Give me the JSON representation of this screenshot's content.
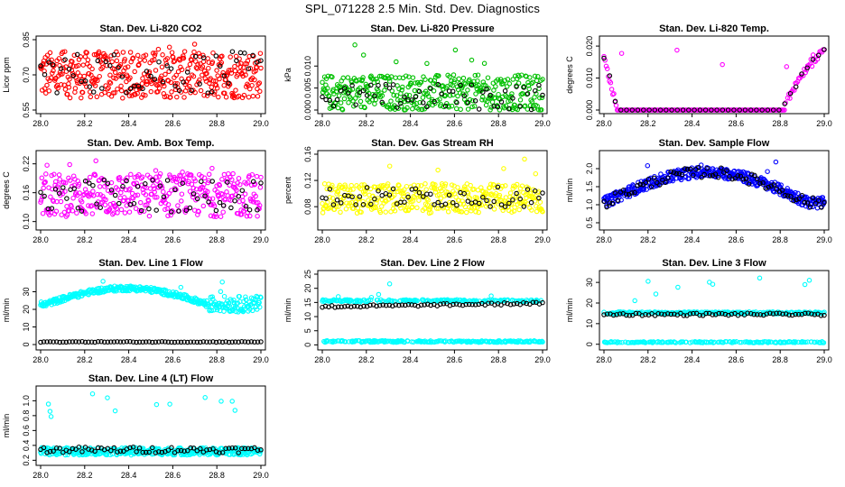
{
  "page": {
    "title": "SPL_071228  2.5 Min. Std. Dev. Diagnostics"
  },
  "chart_data": [
    {
      "type": "scatter",
      "title": "Stan. Dev. Li-820 CO2",
      "xlabel": "",
      "ylabel": "Licor ppm",
      "xlim": [
        28.0,
        29.0
      ],
      "ylim": [
        0.55,
        0.85
      ],
      "yticks": [
        "0.55",
        "0.70",
        "0.85"
      ],
      "xticks": [
        "28.0",
        "28.2",
        "28.4",
        "28.6",
        "28.8",
        "29.0"
      ],
      "series": [
        {
          "color": "#ff0000",
          "x": [
            28.0,
            29.0
          ],
          "band": [
            0.6,
            0.8
          ],
          "n": 420
        },
        {
          "color": "#000000",
          "x": [
            28.0,
            29.0
          ],
          "band": [
            0.62,
            0.8
          ],
          "n": 55
        }
      ]
    },
    {
      "type": "scatter",
      "title": "Stan. Dev. Li-820 Pressure",
      "xlabel": "",
      "ylabel": "kPa",
      "xlim": [
        28.0,
        29.0
      ],
      "ylim": [
        0.0,
        0.016
      ],
      "yticks": [
        "0.000",
        "0.005",
        "0.010"
      ],
      "xticks": [
        "28.0",
        "28.2",
        "28.4",
        "28.6",
        "28.8",
        "29.0"
      ],
      "series": [
        {
          "color": "#00c000",
          "x": [
            28.0,
            29.0
          ],
          "band": [
            0.0,
            0.008
          ],
          "n": 380
        },
        {
          "color": "#000000",
          "x": [
            28.0,
            29.0
          ],
          "band": [
            0.0,
            0.006
          ],
          "n": 60
        }
      ]
    },
    {
      "type": "scatter",
      "title": "Stan. Dev. Li-820 Temp.",
      "xlabel": "",
      "ylabel": "degrees C",
      "xlim": [
        28.0,
        29.0
      ],
      "ylim": [
        0.0,
        0.022
      ],
      "yticks": [
        "0.000",
        "0.010",
        "0.020"
      ],
      "xticks": [
        "28.0",
        "28.2",
        "28.4",
        "28.6",
        "28.8",
        "29.0"
      ],
      "series": [
        {
          "color": "#ff00ff",
          "x": [
            28.0,
            29.0
          ],
          "band": [
            0.0,
            0.0
          ],
          "n": 200
        },
        {
          "color": "#000000",
          "x": [
            28.0,
            29.0
          ],
          "band": [
            0.0,
            0.0
          ],
          "n": 40
        }
      ]
    },
    {
      "type": "scatter",
      "title": "Stan. Dev. Amb. Box Temp.",
      "xlabel": "",
      "ylabel": "degrees C",
      "xlim": [
        28.0,
        29.0
      ],
      "ylim": [
        0.09,
        0.24
      ],
      "yticks": [
        "0.10",
        "0.16",
        "0.22"
      ],
      "xticks": [
        "28.0",
        "28.2",
        "28.4",
        "28.6",
        "28.8",
        "29.0"
      ],
      "series": [
        {
          "color": "#ff00ff",
          "x": [
            28.0,
            29.0
          ],
          "band": [
            0.11,
            0.2
          ],
          "n": 380
        },
        {
          "color": "#000000",
          "x": [
            28.0,
            29.0
          ],
          "band": [
            0.12,
            0.19
          ],
          "n": 60
        }
      ]
    },
    {
      "type": "scatter",
      "title": "Stan. Dev. Gas Stream RH",
      "xlabel": "",
      "ylabel": "percent",
      "xlim": [
        28.0,
        29.0
      ],
      "ylim": [
        0.05,
        0.16
      ],
      "yticks": [
        "0.08",
        "0.12",
        "0.16"
      ],
      "xticks": [
        "28.0",
        "28.2",
        "28.4",
        "28.6",
        "28.8",
        "29.0"
      ],
      "series": [
        {
          "color": "#ffff00",
          "x": [
            28.0,
            29.0
          ],
          "band": [
            0.07,
            0.115
          ],
          "n": 380
        },
        {
          "color": "#000000",
          "x": [
            28.0,
            29.0
          ],
          "band": [
            0.08,
            0.11
          ],
          "n": 60
        }
      ]
    },
    {
      "type": "scatter",
      "title": "Stan. Dev. Sample Flow",
      "xlabel": "",
      "ylabel": "ml/min",
      "xlim": [
        28.0,
        29.0
      ],
      "ylim": [
        0.4,
        2.4
      ],
      "yticks": [
        "0.5",
        "1.0",
        "1.5",
        "2.0"
      ],
      "xticks": [
        "28.0",
        "28.2",
        "28.4",
        "28.6",
        "28.8",
        "29.0"
      ],
      "series": [
        {
          "color": "#0000ff",
          "x": [
            28.0,
            29.0
          ],
          "band": [
            1.0,
            1.9
          ],
          "n": 420
        },
        {
          "color": "#000000",
          "x": [
            28.0,
            29.0
          ],
          "band": [
            1.0,
            1.85
          ],
          "n": 80
        }
      ]
    },
    {
      "type": "scatter",
      "title": "Stan. Dev. Line 1 Flow",
      "xlabel": "",
      "ylabel": "ml/min",
      "xlim": [
        28.0,
        29.0
      ],
      "ylim": [
        -1,
        40
      ],
      "yticks": [
        "0",
        "10",
        "20",
        "30"
      ],
      "xticks": [
        "28.0",
        "28.2",
        "28.4",
        "28.6",
        "28.8",
        "29.0"
      ],
      "series": [
        {
          "color": "#00ffff",
          "x": [
            28.0,
            29.0
          ],
          "band": [
            22,
            32
          ],
          "n": 400
        },
        {
          "color": "#000000",
          "x": [
            28.0,
            29.0
          ],
          "band": [
            1.5,
            1.5
          ],
          "n": 70
        }
      ]
    },
    {
      "type": "scatter",
      "title": "Stan. Dev. Line 2 Flow",
      "xlabel": "",
      "ylabel": "ml/min",
      "xlim": [
        28.0,
        29.0
      ],
      "ylim": [
        -0.5,
        25
      ],
      "yticks": [
        "0",
        "5",
        "10",
        "15",
        "20",
        "25"
      ],
      "xticks": [
        "28.0",
        "28.2",
        "28.4",
        "28.6",
        "28.8",
        "29.0"
      ],
      "series": [
        {
          "color": "#00ffff",
          "x": [
            28.0,
            29.0
          ],
          "band": [
            15.5,
            16
          ],
          "n": 400
        },
        {
          "color": "#000000",
          "x": [
            28.0,
            29.0
          ],
          "band": [
            13,
            14.5
          ],
          "n": 70
        }
      ]
    },
    {
      "type": "scatter",
      "title": "Stan. Dev. Line 3 Flow",
      "xlabel": "",
      "ylabel": "ml/min",
      "xlim": [
        28.0,
        29.0
      ],
      "ylim": [
        -1,
        34
      ],
      "yticks": [
        "0",
        "10",
        "20",
        "30"
      ],
      "xticks": [
        "28.0",
        "28.2",
        "28.4",
        "28.6",
        "28.8",
        "29.0"
      ],
      "series": [
        {
          "color": "#00ffff",
          "x": [
            28.0,
            29.0
          ],
          "band": [
            15,
            15.5
          ],
          "n": 400
        },
        {
          "color": "#000000",
          "x": [
            28.0,
            29.0
          ],
          "band": [
            14,
            15
          ],
          "n": 70
        }
      ]
    },
    {
      "type": "scatter",
      "title": "Stan. Dev. Line 4 (LT) Flow",
      "xlabel": "",
      "ylabel": "ml/min",
      "xlim": [
        28.0,
        29.0
      ],
      "ylim": [
        0.18,
        1.15
      ],
      "yticks": [
        "0.2",
        "0.4",
        "0.6",
        "0.8",
        "1.0"
      ],
      "xticks": [
        "28.0",
        "28.2",
        "28.4",
        "28.6",
        "28.8",
        "29.0"
      ],
      "series": [
        {
          "color": "#00ffff",
          "x": [
            28.0,
            29.0
          ],
          "band": [
            0.27,
            0.37
          ],
          "n": 400
        },
        {
          "color": "#000000",
          "x": [
            28.0,
            29.0
          ],
          "band": [
            0.3,
            0.38
          ],
          "n": 70
        }
      ]
    }
  ]
}
